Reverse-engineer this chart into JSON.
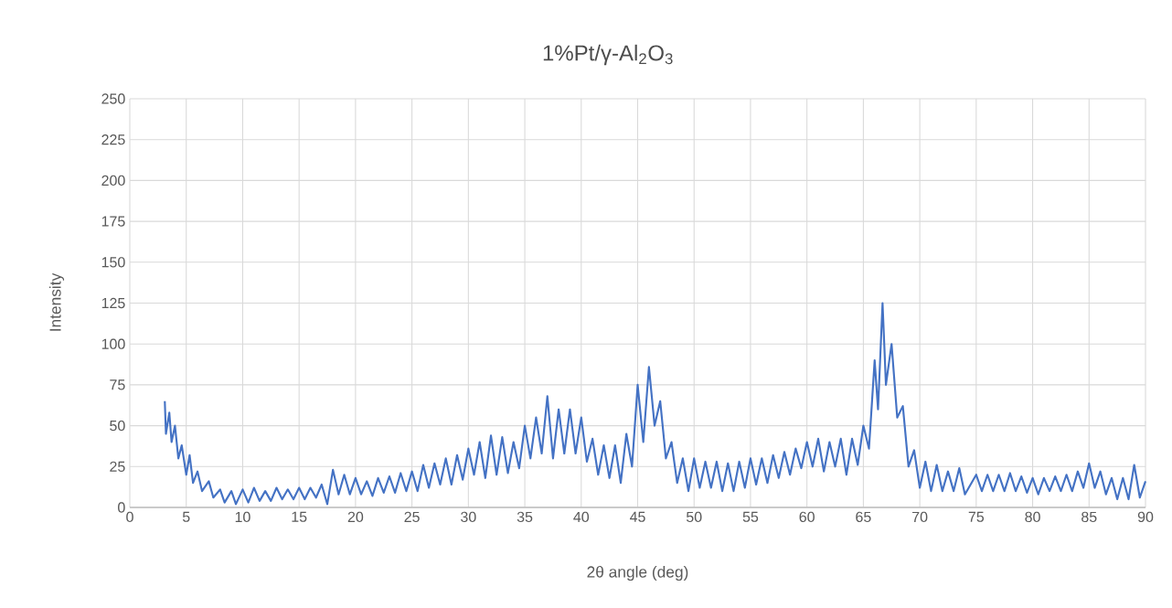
{
  "chart_data": {
    "type": "line",
    "title": "1%Pt/γ-Al$_{2}$O$_{3}$",
    "xlabel": "2θ angle (deg)",
    "ylabel": "Intensity",
    "x": [
      3.1,
      3.2,
      3.5,
      3.7,
      4.0,
      4.3,
      4.6,
      5.0,
      5.3,
      5.6,
      6.0,
      6.4,
      7.0,
      7.4,
      8.0,
      8.4,
      9.0,
      9.4,
      10,
      10.5,
      11,
      11.5,
      12,
      12.5,
      13,
      13.5,
      14,
      14.5,
      15,
      15.5,
      16,
      16.5,
      17,
      17.5,
      18,
      18.5,
      19,
      19.5,
      20,
      20.5,
      21,
      21.5,
      22,
      22.5,
      23,
      23.5,
      24,
      24.5,
      25,
      25.5,
      26,
      26.5,
      27,
      27.5,
      28,
      28.5,
      29,
      29.5,
      30,
      30.5,
      31,
      31.5,
      32,
      32.5,
      33,
      33.5,
      34,
      34.5,
      35,
      35.5,
      36,
      36.5,
      37,
      37.5,
      38,
      38.5,
      39,
      39.5,
      40,
      40.5,
      41,
      41.5,
      42,
      42.5,
      43,
      43.5,
      44,
      44.5,
      45,
      45.5,
      46,
      46.5,
      47,
      47.5,
      48,
      48.5,
      49,
      49.5,
      50,
      50.5,
      51,
      51.5,
      52,
      52.5,
      53,
      53.5,
      54,
      54.5,
      55,
      55.5,
      56,
      56.5,
      57,
      57.5,
      58,
      58.5,
      59,
      59.5,
      60,
      60.5,
      61,
      61.5,
      62,
      62.5,
      63,
      63.5,
      64,
      64.5,
      65,
      65.5,
      66,
      66.3,
      66.7,
      67,
      67.5,
      68,
      68.5,
      69,
      69.5,
      70,
      70.5,
      71,
      71.5,
      72,
      72.5,
      73,
      73.5,
      74,
      75,
      75.5,
      76,
      76.5,
      77,
      77.5,
      78,
      78.5,
      79,
      79.5,
      80,
      80.5,
      81,
      81.5,
      82,
      82.5,
      83,
      83.5,
      84,
      84.5,
      85,
      85.5,
      86,
      86.5,
      87,
      87.5,
      88,
      88.5,
      89,
      89.5,
      90
    ],
    "series": [
      {
        "color": "#4472c4",
        "values": [
          65,
          45,
          58,
          40,
          50,
          30,
          38,
          20,
          32,
          15,
          22,
          10,
          16,
          6,
          11,
          3,
          10,
          2,
          11,
          3,
          12,
          4,
          10,
          4,
          12,
          5,
          11,
          5,
          12,
          5,
          12,
          6,
          14,
          2,
          23,
          8,
          20,
          8,
          18,
          8,
          16,
          7,
          18,
          9,
          19,
          9,
          21,
          10,
          22,
          10,
          26,
          12,
          27,
          14,
          30,
          14,
          32,
          17,
          36,
          20,
          40,
          18,
          44,
          20,
          43,
          21,
          40,
          24,
          50,
          30,
          55,
          33,
          68,
          30,
          60,
          33,
          60,
          33,
          55,
          28,
          42,
          20,
          38,
          18,
          38,
          15,
          45,
          25,
          75,
          40,
          86,
          50,
          65,
          30,
          40,
          15,
          30,
          10,
          30,
          12,
          28,
          12,
          28,
          10,
          27,
          10,
          28,
          12,
          30,
          14,
          30,
          15,
          32,
          18,
          34,
          20,
          36,
          24,
          40,
          25,
          42,
          22,
          40,
          25,
          42,
          20,
          42,
          26,
          50,
          36,
          90,
          60,
          125,
          75,
          100,
          55,
          62,
          25,
          35,
          12,
          28,
          10,
          26,
          10,
          22,
          10,
          24,
          8,
          20,
          10,
          20,
          10,
          20,
          10,
          21,
          10,
          19,
          9,
          18,
          8,
          18,
          10,
          19,
          10,
          20,
          10,
          22,
          12,
          27,
          12,
          22,
          8,
          18,
          5,
          18,
          5,
          26,
          6,
          16
        ]
      }
    ],
    "xlim": [
      0,
      90
    ],
    "ylim": [
      0,
      250
    ],
    "xticks": [
      0,
      5,
      10,
      15,
      20,
      25,
      30,
      35,
      40,
      45,
      50,
      55,
      60,
      65,
      70,
      75,
      80,
      85,
      90
    ],
    "yticks": [
      0,
      25,
      50,
      75,
      100,
      125,
      150,
      175,
      200,
      225,
      250
    ],
    "grid": true,
    "marker": "none",
    "line_style": "solid"
  }
}
